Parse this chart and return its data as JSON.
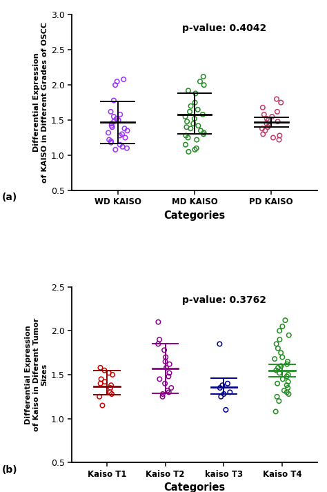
{
  "panel_a": {
    "title": "p-value: 0.4042",
    "ylabel": "Differential Expression\nof KAISO in Different Grades of OSCC",
    "xlabel": "Categories",
    "categories": [
      "WD KAISO",
      "MD KAISO",
      "PD KAISO"
    ],
    "colors": [
      "#9B30FF",
      "#228B22",
      "#C0396B"
    ],
    "ylim": [
      0.5,
      3.0
    ],
    "yticks": [
      0.5,
      1.0,
      1.5,
      2.0,
      2.5,
      3.0
    ],
    "means": [
      1.47,
      1.58,
      1.47
    ],
    "upper_errors": [
      0.3,
      0.3,
      0.07
    ],
    "lower_errors": [
      0.3,
      0.28,
      0.07
    ],
    "data_points": {
      "WD KAISO": [
        1.08,
        1.1,
        1.12,
        1.15,
        1.18,
        1.2,
        1.22,
        1.25,
        1.28,
        1.3,
        1.32,
        1.35,
        1.38,
        1.4,
        1.42,
        1.45,
        1.48,
        1.5,
        1.52,
        1.55,
        1.58,
        1.62,
        1.78,
        2.0,
        2.05,
        2.08
      ],
      "MD KAISO": [
        1.05,
        1.08,
        1.1,
        1.15,
        1.22,
        1.25,
        1.28,
        1.3,
        1.32,
        1.35,
        1.38,
        1.4,
        1.42,
        1.45,
        1.48,
        1.52,
        1.55,
        1.58,
        1.62,
        1.65,
        1.7,
        1.75,
        1.88,
        1.92,
        2.0,
        2.05,
        2.12
      ],
      "PD KAISO": [
        1.22,
        1.25,
        1.28,
        1.3,
        1.35,
        1.38,
        1.4,
        1.42,
        1.45,
        1.48,
        1.5,
        1.52,
        1.55,
        1.58,
        1.62,
        1.68,
        1.75,
        1.8
      ]
    },
    "label": "(a)"
  },
  "panel_b": {
    "title": "p-value: 0.3762",
    "ylabel": "Differential Expression\nof Kaiso in Diferent Tumor\nSizes",
    "xlabel": "Categories",
    "categories": [
      "Kaiso T1",
      "Kaiso T2",
      "kaiso T3",
      "Kaiso T4"
    ],
    "colors": [
      "#CC0000",
      "#8B008B",
      "#00008B",
      "#228B22"
    ],
    "err_colors": [
      "#8B0000",
      "#8B008B",
      "#00008B",
      "#228B22"
    ],
    "ylim": [
      0.5,
      2.5
    ],
    "yticks": [
      0.5,
      1.0,
      1.5,
      2.0,
      2.5
    ],
    "means": [
      1.37,
      1.57,
      1.36,
      1.55
    ],
    "upper_errors": [
      0.18,
      0.28,
      0.1,
      0.07
    ],
    "lower_errors": [
      0.1,
      0.28,
      0.08,
      0.07
    ],
    "data_points": {
      "Kaiso T1": [
        1.15,
        1.25,
        1.28,
        1.3,
        1.35,
        1.38,
        1.4,
        1.42,
        1.45,
        1.5,
        1.52,
        1.55,
        1.58
      ],
      "Kaiso T2": [
        1.25,
        1.28,
        1.3,
        1.32,
        1.35,
        1.4,
        1.45,
        1.48,
        1.52,
        1.58,
        1.62,
        1.65,
        1.7,
        1.78,
        1.85,
        1.9,
        2.1
      ],
      "kaiso T3": [
        1.1,
        1.25,
        1.28,
        1.3,
        1.35,
        1.38,
        1.4,
        1.85
      ],
      "Kaiso T4": [
        1.08,
        1.2,
        1.25,
        1.28,
        1.3,
        1.32,
        1.35,
        1.38,
        1.4,
        1.42,
        1.45,
        1.48,
        1.5,
        1.52,
        1.55,
        1.58,
        1.6,
        1.62,
        1.65,
        1.68,
        1.7,
        1.75,
        1.8,
        1.85,
        1.9,
        1.95,
        2.0,
        2.05,
        2.12
      ]
    },
    "label": "(b)"
  }
}
